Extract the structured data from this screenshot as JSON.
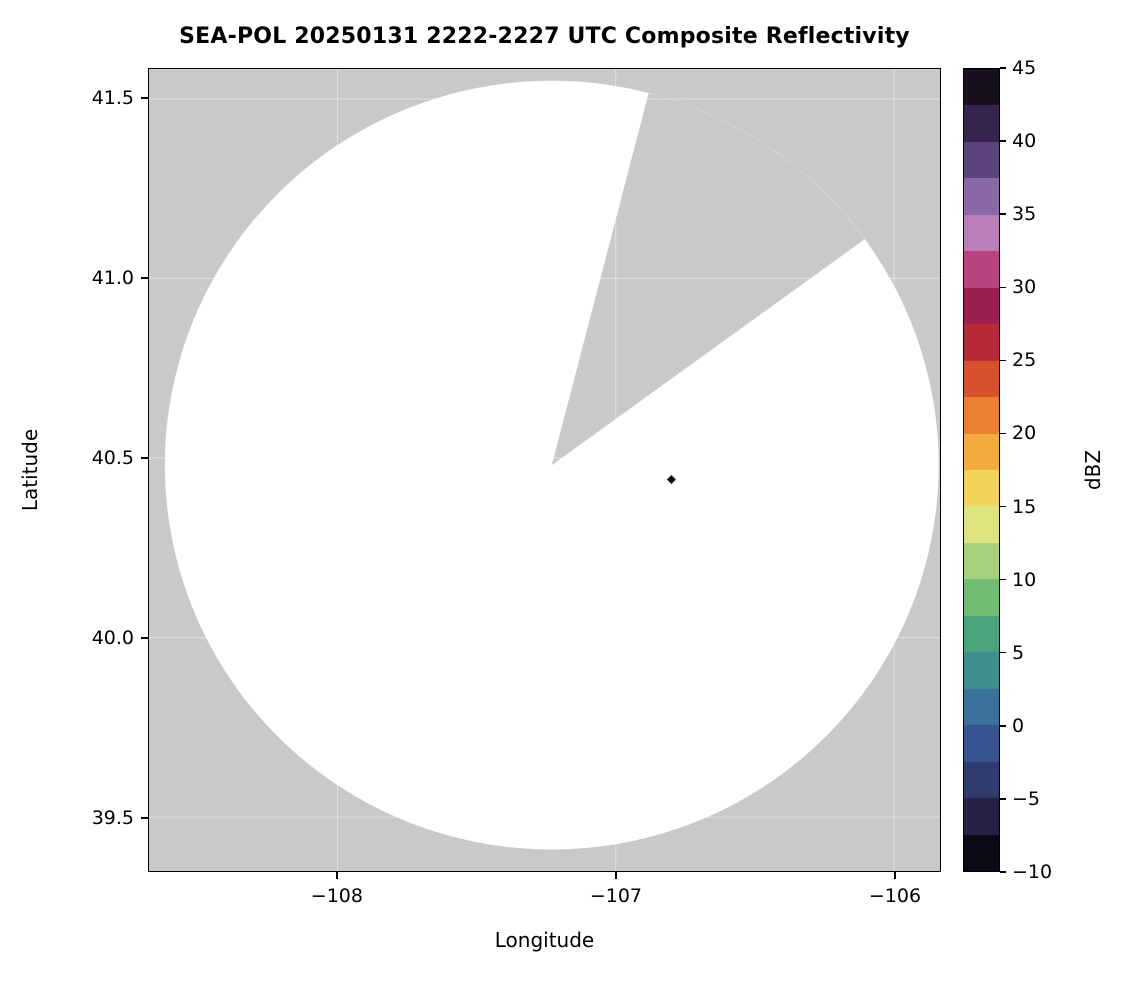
{
  "title": "SEA-POL 20250131 2222-2227 UTC Composite Reflectivity",
  "axes": {
    "xlabel": "Longitude",
    "ylabel": "Latitude",
    "x_ticks": [
      {
        "value": -108,
        "label": "−108"
      },
      {
        "value": -107,
        "label": "−107"
      },
      {
        "value": -106,
        "label": "−106"
      }
    ],
    "y_ticks": [
      {
        "value": 41.5,
        "label": "41.5"
      },
      {
        "value": 41.0,
        "label": "41.0"
      },
      {
        "value": 40.5,
        "label": "40.5"
      },
      {
        "value": 40.0,
        "label": "40.0"
      },
      {
        "value": 39.5,
        "label": "39.5"
      }
    ]
  },
  "colorbar": {
    "label": "dBZ",
    "ticks": [
      {
        "value": 45,
        "label": "45"
      },
      {
        "value": 40,
        "label": "40"
      },
      {
        "value": 35,
        "label": "35"
      },
      {
        "value": 30,
        "label": "30"
      },
      {
        "value": 25,
        "label": "25"
      },
      {
        "value": 20,
        "label": "20"
      },
      {
        "value": 15,
        "label": "15"
      },
      {
        "value": 10,
        "label": "10"
      },
      {
        "value": 5,
        "label": "5"
      },
      {
        "value": 0,
        "label": "0"
      },
      {
        "value": -5,
        "label": "−5"
      },
      {
        "value": -10,
        "label": "−10"
      }
    ],
    "segments": [
      "#17101f",
      "#372550",
      "#5b437c",
      "#8a68a8",
      "#b97fb9",
      "#b8447f",
      "#9c1f52",
      "#b92a39",
      "#d9512c",
      "#ec7f31",
      "#f4ab3d",
      "#f1d459",
      "#dfe47f",
      "#a8d17d",
      "#6fbc72",
      "#49a47b",
      "#3d8e8d",
      "#3a7198",
      "#375390",
      "#2f3a6e",
      "#252147",
      "#0c0814"
    ]
  },
  "chart_data": {
    "type": "radar_composite_reflectivity_map",
    "title": "SEA-POL 20250131 2222-2227 UTC Composite Reflectivity",
    "xlabel": "Longitude",
    "ylabel": "Latitude",
    "xlim": [
      -108.677,
      -105.835
    ],
    "ylim": [
      39.35,
      41.583
    ],
    "x_tick_values": [
      -108,
      -107,
      -106
    ],
    "y_tick_values": [
      41.5,
      41.0,
      40.5,
      40.0,
      39.5
    ],
    "colorbar_label": "dBZ",
    "colorbar_range": [
      -10,
      45
    ],
    "colorbar_tick_step": 5,
    "radar_center": {
      "lon": -107.23,
      "lat": 40.48
    },
    "coverage_radius_lon_deg": 1.39,
    "coverage_radius_lat_deg": 1.07,
    "blanked_sector_azimuth_deg": [
      14.5,
      54
    ],
    "marker": {
      "lon": -106.8,
      "lat": 40.44,
      "shape": "diamond",
      "color": "#101010"
    },
    "background_color": "#c9c9c9",
    "coverage_color": "#ffffff",
    "grid": true,
    "legend_position": "none"
  }
}
